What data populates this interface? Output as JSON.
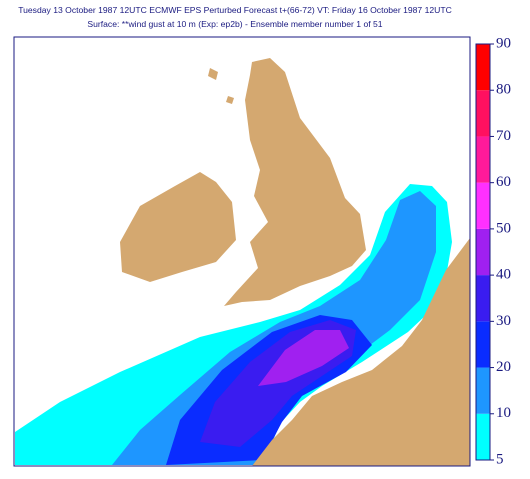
{
  "header": {
    "line1": "Tuesday 13 October 1987 12UTC ECMWF  EPS Perturbed Forecast t+(66-72) VT: Friday 16 October 1987 12UTC",
    "line2": "Surface: **wind gust at 10 m (Exp: ep2b) - Ensemble member number 1 of  51"
  },
  "colorbar": {
    "levels": [
      5,
      10,
      20,
      30,
      40,
      50,
      60,
      70,
      80,
      90
    ],
    "colors": [
      "#00ffff",
      "#1e96ff",
      "#0a2cff",
      "#3a1cf0",
      "#a020f0",
      "#ff30ff",
      "#ff1a9a",
      "#ff1060",
      "#ff0000"
    ]
  }
}
